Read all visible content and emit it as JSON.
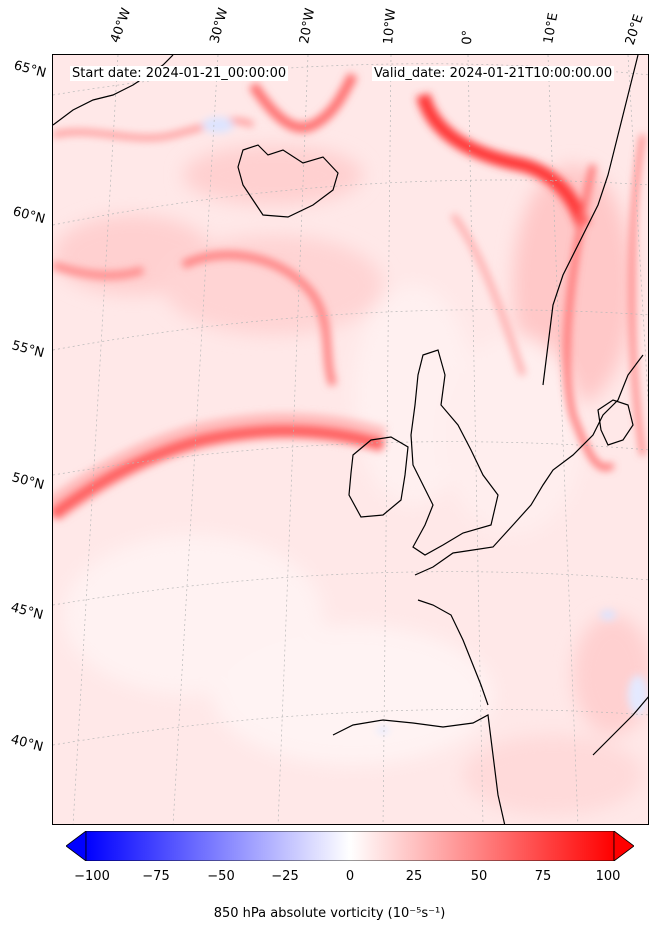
{
  "header": {
    "start_date": "Start date: 2024-01-21_00:00:00",
    "valid_date": "Valid_date: 2024-01-21T10:00:00.00"
  },
  "longitude_labels": [
    "40°W",
    "30°W",
    "20°W",
    "10°W",
    "0°",
    "10°E",
    "20°E"
  ],
  "latitude_labels": [
    "65°N",
    "60°N",
    "55°N",
    "50°N",
    "45°N",
    "40°N"
  ],
  "colorbar": {
    "label": "850 hPa absolute vorticity (10⁻⁵s⁻¹)",
    "ticks": [
      "−100",
      "−75",
      "−50",
      "−25",
      "0",
      "25",
      "50",
      "75",
      "100"
    ],
    "min": -100,
    "max": 100,
    "extend": "both",
    "cmap": "bwr",
    "low_color": "#0000ff",
    "mid_color": "#ffffff",
    "high_color": "#ff0000"
  },
  "map": {
    "projection": "conic",
    "background_field_color": "#ffe6e6",
    "coastline_color": "#000000",
    "gridline_color": "#bbbbbb"
  }
}
